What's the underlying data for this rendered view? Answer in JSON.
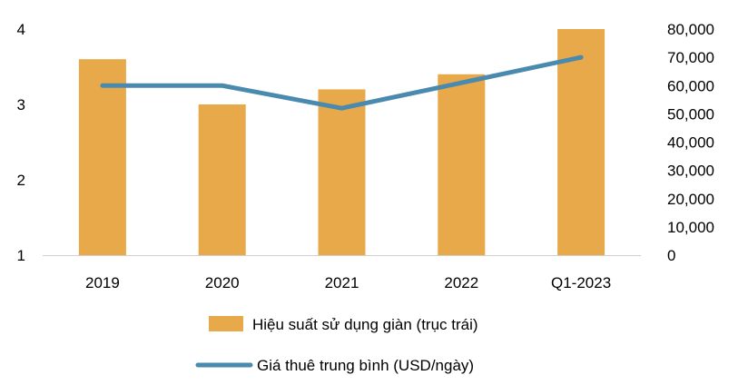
{
  "chart_data": {
    "type": "bar",
    "categories": [
      "2019",
      "2020",
      "2021",
      "2022",
      "Q1-2023"
    ],
    "y_left": {
      "ticks": [
        "1",
        "2",
        "3",
        "4"
      ],
      "ylim": [
        1,
        4
      ]
    },
    "y_right": {
      "ticks": [
        "0",
        "10,000",
        "20,000",
        "30,000",
        "40,000",
        "50,000",
        "60,000",
        "70,000",
        "80,000"
      ],
      "ylim": [
        0,
        80000
      ]
    },
    "series": [
      {
        "name": "Hiệu suất sử dụng giàn (trục trái)",
        "type": "bar",
        "axis": "left",
        "color": "#E8A94A",
        "values": [
          3.6,
          3.0,
          3.2,
          3.4,
          4.0
        ]
      },
      {
        "name": "Giá thuê trung bình (USD/ngày)",
        "type": "line",
        "axis": "right",
        "color": "#4A8AAE",
        "values": [
          60000,
          60000,
          52000,
          61000,
          70000
        ]
      }
    ],
    "grid": false,
    "legend_position": "bottom"
  }
}
